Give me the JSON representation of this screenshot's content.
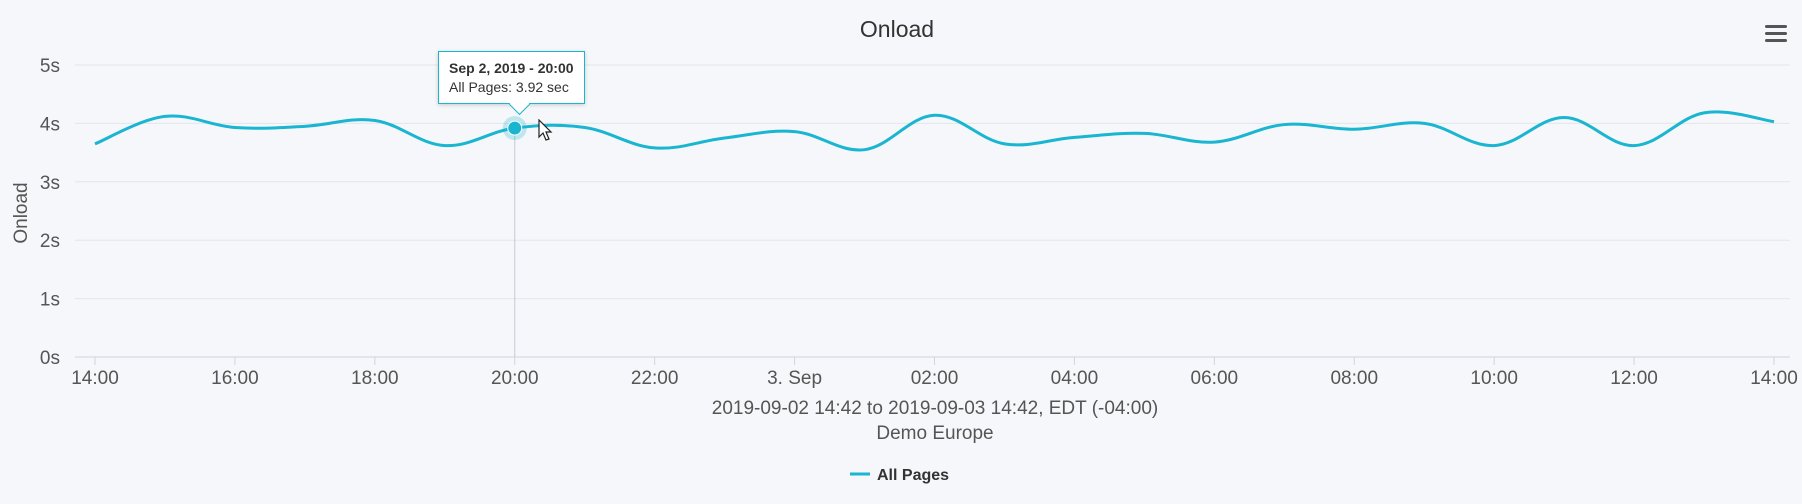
{
  "chart_data": {
    "type": "line",
    "title": "Onload",
    "subtitle_lines": [
      "2019-09-02 14:42 to 2019-09-03 14:42, EDT (-04:00)",
      "Demo Europe"
    ],
    "ylabel": "Onload",
    "ylim": [
      0,
      5
    ],
    "y_ticks": [
      "0s",
      "1s",
      "2s",
      "3s",
      "4s",
      "5s"
    ],
    "x_tick_labels": [
      "14:00",
      "16:00",
      "18:00",
      "20:00",
      "22:00",
      "3. Sep",
      "02:00",
      "04:00",
      "06:00",
      "08:00",
      "10:00",
      "12:00",
      "14:00"
    ],
    "grid": true,
    "legend_position": "bottom-center",
    "series": [
      {
        "name": "All Pages",
        "color": "#19b5d1",
        "x_hours_labels": [
          "14:00",
          "15:00",
          "16:00",
          "17:00",
          "18:00",
          "19:00",
          "20:00",
          "21:00",
          "22:00",
          "23:00",
          "00:00",
          "01:00",
          "02:00",
          "03:00",
          "04:00",
          "05:00",
          "06:00",
          "07:00",
          "08:00",
          "09:00",
          "10:00",
          "11:00",
          "12:00",
          "13:00",
          "14:00"
        ],
        "values": [
          3.65,
          4.12,
          3.93,
          3.95,
          4.05,
          3.62,
          3.92,
          3.93,
          3.58,
          3.75,
          3.86,
          3.55,
          4.14,
          3.65,
          3.76,
          3.83,
          3.68,
          3.98,
          3.9,
          4.0,
          3.62,
          4.1,
          3.62,
          4.18,
          4.03
        ]
      }
    ]
  },
  "tooltip": {
    "title": "Sep 2, 2019 - 20:00",
    "body": "All Pages: 3.92 sec"
  },
  "menu": {
    "icon": "hamburger-menu-icon"
  }
}
